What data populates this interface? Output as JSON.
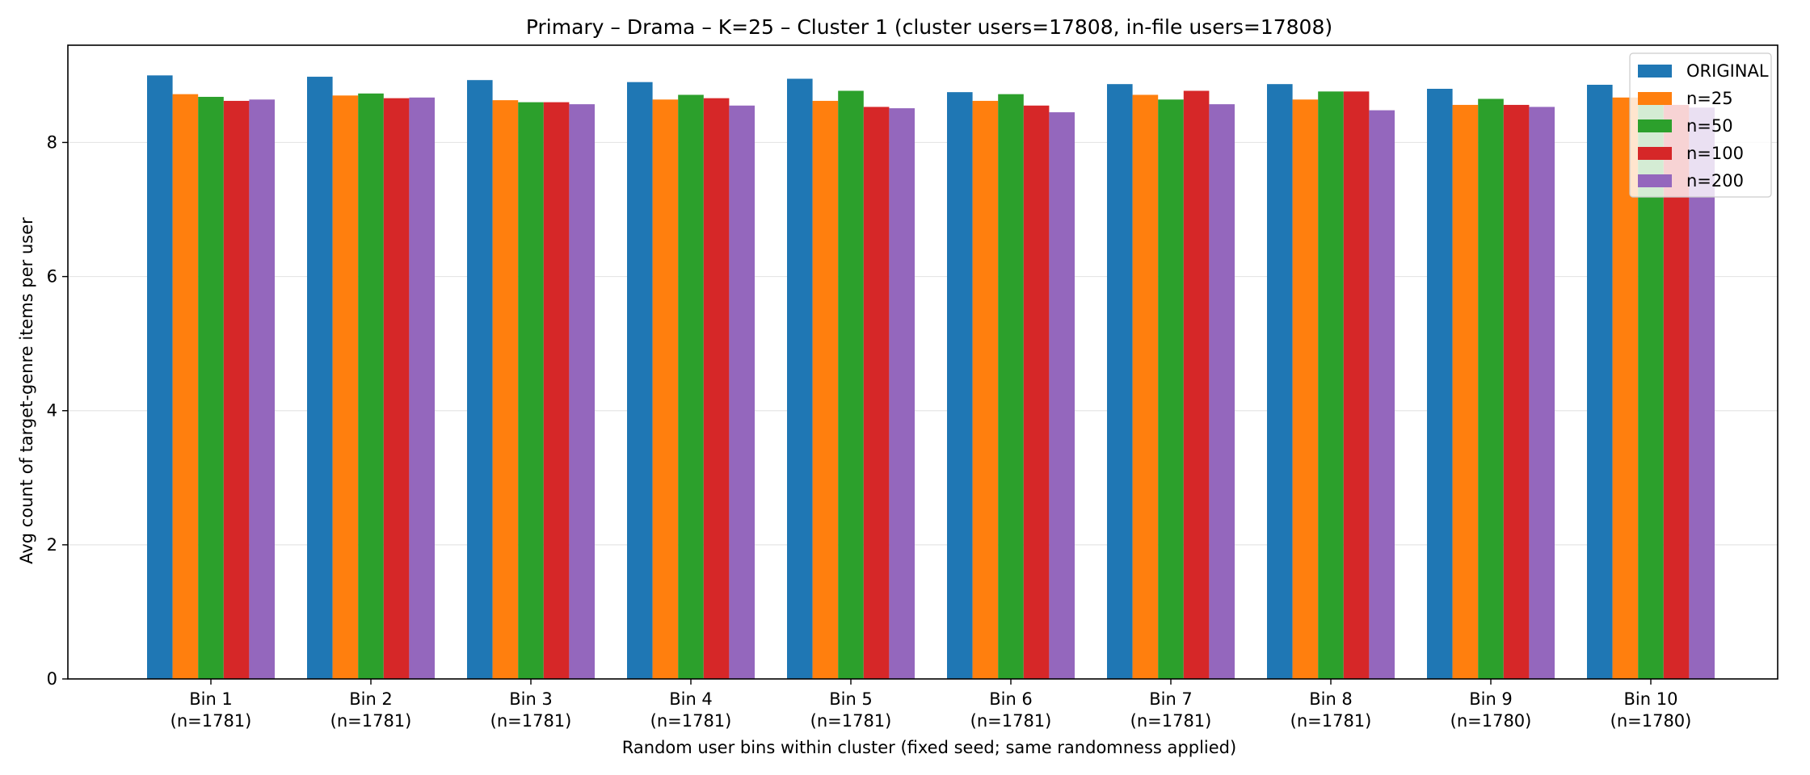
{
  "chart_data": {
    "type": "bar",
    "title": "Primary – Drama – K=25 – Cluster 1 (cluster users=17808, in-file users=17808)",
    "xlabel": "Random user bins within cluster (fixed seed; same randomness applied)",
    "ylabel": "Avg count of target-genre items per user",
    "ylim": [
      0,
      9.45
    ],
    "yticks": [
      "0",
      "2",
      "4",
      "6",
      "8"
    ],
    "grid": "horizontal",
    "legend_position": "top-right",
    "categories": [
      "Bin 1",
      "Bin 2",
      "Bin 3",
      "Bin 4",
      "Bin 5",
      "Bin 6",
      "Bin 7",
      "Bin 8",
      "Bin 9",
      "Bin 10"
    ],
    "category_sublabels": [
      "(n=1781)",
      "(n=1781)",
      "(n=1781)",
      "(n=1781)",
      "(n=1781)",
      "(n=1781)",
      "(n=1781)",
      "(n=1781)",
      "(n=1780)",
      "(n=1780)"
    ],
    "series": [
      {
        "name": "ORIGINAL",
        "color": "#1f77b4",
        "values": [
          9.0,
          8.98,
          8.93,
          8.9,
          8.95,
          8.75,
          8.87,
          8.87,
          8.8,
          8.86
        ]
      },
      {
        "name": "n=25",
        "color": "#ff7f0e",
        "values": [
          8.72,
          8.7,
          8.63,
          8.64,
          8.62,
          8.62,
          8.71,
          8.64,
          8.56,
          8.67
        ]
      },
      {
        "name": "n=50",
        "color": "#2ca02c",
        "values": [
          8.68,
          8.73,
          8.6,
          8.71,
          8.77,
          8.72,
          8.64,
          8.76,
          8.65,
          8.6
        ]
      },
      {
        "name": "n=100",
        "color": "#d62728",
        "values": [
          8.62,
          8.66,
          8.6,
          8.66,
          8.53,
          8.55,
          8.77,
          8.76,
          8.56,
          8.56
        ]
      },
      {
        "name": "n=200",
        "color": "#9467bd",
        "values": [
          8.64,
          8.67,
          8.57,
          8.55,
          8.51,
          8.45,
          8.57,
          8.48,
          8.53,
          8.52
        ]
      }
    ]
  }
}
